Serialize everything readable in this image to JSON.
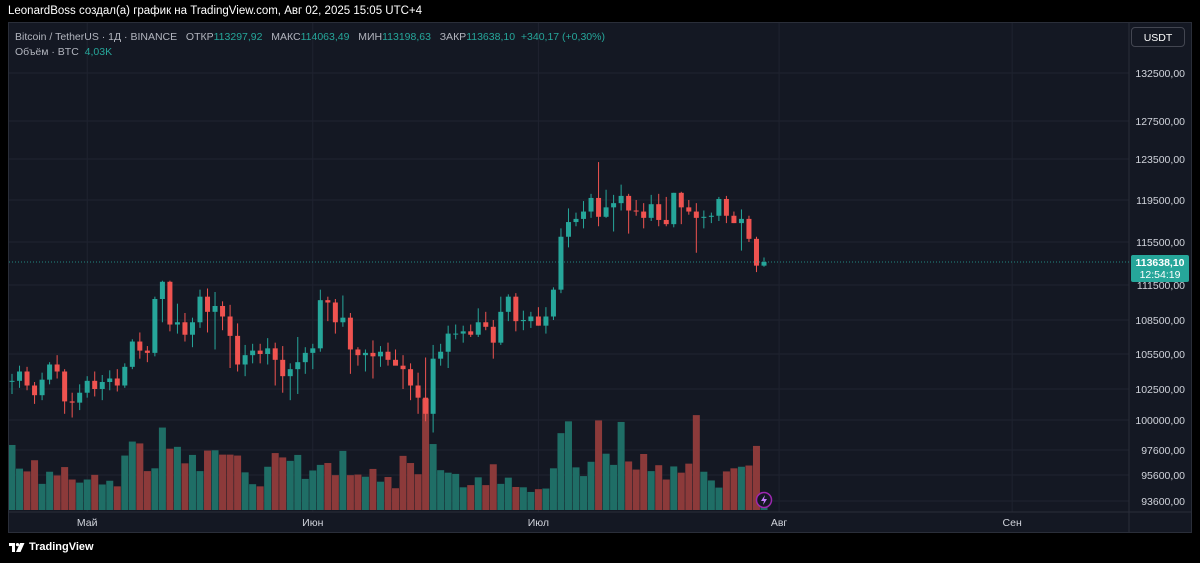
{
  "caption": "LeonardBoss создал(а) график на TradingView.com, Авг 02, 2025 15:05 UTC+4",
  "legend": {
    "symbol": "Bitcoin / TetherUS · 1Д · BINANCE",
    "open_label": "ОТКР",
    "open": "113297,92",
    "high_label": "МАКС",
    "high": "114063,49",
    "low_label": "МИН",
    "low": "113198,63",
    "close_label": "ЗАКР",
    "close": "113638,10",
    "change": "+340,17 (+0,30%)",
    "volume_label": "Объём · BTC",
    "volume": "4,03K"
  },
  "currency_button": "USDT",
  "footer_brand": "TradingView",
  "icons": {
    "logo": "tradingview-logo-icon",
    "lightning": "lightning-icon"
  },
  "colors": {
    "up": "#26a69a",
    "down": "#ef5350",
    "background": "#141823",
    "price_tag": "#26a69a"
  },
  "chart_data": {
    "type": "candlestick",
    "y_ticks": [
      "132500,00",
      "127500,00",
      "123500,00",
      "119500,00",
      "115500,00",
      "111500,00",
      "108500,00",
      "105500,00",
      "102500,00",
      "100000,00",
      "97600,00",
      "95600,00",
      "93600,00"
    ],
    "y_tick_values": [
      132500,
      127500,
      123500,
      119500,
      115500,
      111500,
      108500,
      105500,
      102500,
      100000,
      97600,
      95600,
      93600
    ],
    "x_ticks": [
      "Май",
      "Июн",
      "Июл",
      "Авг",
      "Сен"
    ],
    "x_tick_days": [
      10,
      40,
      70,
      102,
      133
    ],
    "last_price": {
      "price": "113638,10",
      "countdown": "12:54:19",
      "value": 113638.1
    },
    "candles": [
      [
        103120,
        103800,
        102100,
        103200,
        2.09
      ],
      [
        103200,
        104500,
        102600,
        104000,
        1.33
      ],
      [
        104000,
        104400,
        102400,
        102800,
        1.24
      ],
      [
        102800,
        103100,
        101300,
        102000,
        1.6
      ],
      [
        102000,
        103900,
        101600,
        103300,
        0.84
      ],
      [
        103300,
        104800,
        102900,
        104600,
        1.23
      ],
      [
        104600,
        105400,
        103400,
        104000,
        1.11
      ],
      [
        104000,
        104200,
        100500,
        101500,
        1.38
      ],
      [
        101500,
        102200,
        100200,
        101400,
        0.98
      ],
      [
        101400,
        102900,
        100800,
        102200,
        0.88
      ],
      [
        102200,
        103600,
        101800,
        103200,
        0.98
      ],
      [
        103200,
        104000,
        101900,
        102500,
        1.13
      ],
      [
        102500,
        103700,
        101600,
        103100,
        0.82
      ],
      [
        103100,
        104100,
        102400,
        103400,
        0.94
      ],
      [
        103400,
        104200,
        102300,
        102800,
        0.76
      ],
      [
        102800,
        104700,
        102600,
        104400,
        1.75
      ],
      [
        104400,
        106800,
        104200,
        106600,
        2.2
      ],
      [
        106600,
        107400,
        105100,
        105800,
        2.14
      ],
      [
        105800,
        106200,
        104800,
        105600,
        1.25
      ],
      [
        105600,
        110500,
        105300,
        110300,
        1.34
      ],
      [
        110300,
        111900,
        108300,
        111800,
        2.65
      ],
      [
        111800,
        111900,
        107500,
        108100,
        1.97
      ],
      [
        108100,
        109900,
        107300,
        108300,
        2.03
      ],
      [
        108300,
        109100,
        106600,
        107200,
        1.5
      ],
      [
        107200,
        108700,
        106100,
        108300,
        1.77
      ],
      [
        108300,
        111100,
        107800,
        110500,
        1.25
      ],
      [
        110500,
        111200,
        107400,
        109200,
        1.91
      ],
      [
        109200,
        110900,
        105900,
        109700,
        1.92
      ],
      [
        109700,
        110100,
        107600,
        108800,
        1.78
      ],
      [
        108800,
        109800,
        104300,
        107100,
        1.78
      ],
      [
        107100,
        108200,
        104000,
        104600,
        1.75
      ],
      [
        104600,
        106300,
        103600,
        105400,
        1.21
      ],
      [
        105400,
        106400,
        104700,
        105800,
        0.83
      ],
      [
        105800,
        106400,
        104700,
        105500,
        0.76
      ],
      [
        105500,
        106900,
        104600,
        106000,
        1.39
      ],
      [
        106000,
        106500,
        102800,
        105000,
        1.83
      ],
      [
        105000,
        106200,
        102200,
        103600,
        1.69
      ],
      [
        103600,
        104700,
        101600,
        104200,
        1.58
      ],
      [
        104200,
        107000,
        102100,
        104800,
        1.77
      ],
      [
        104800,
        106100,
        103800,
        105600,
        1.0
      ],
      [
        105600,
        106400,
        104200,
        106000,
        1.27
      ],
      [
        106000,
        111100,
        105700,
        110200,
        1.45
      ],
      [
        110200,
        110500,
        108400,
        110000,
        1.51
      ],
      [
        110000,
        110300,
        107300,
        108300,
        1.12
      ],
      [
        108300,
        110600,
        107900,
        108700,
        1.9
      ],
      [
        108700,
        109100,
        103800,
        105900,
        1.12
      ],
      [
        105900,
        106100,
        104500,
        105400,
        1.14
      ],
      [
        105400,
        105900,
        104000,
        105600,
        1.07
      ],
      [
        105600,
        106700,
        103400,
        105300,
        1.32
      ],
      [
        105300,
        106200,
        104400,
        105700,
        0.91
      ],
      [
        105700,
        106500,
        104500,
        105000,
        1.06
      ],
      [
        105000,
        105900,
        104700,
        104500,
        0.7
      ],
      [
        104500,
        105400,
        102500,
        104200,
        1.74
      ],
      [
        104200,
        104700,
        101600,
        102800,
        1.51
      ],
      [
        102800,
        103900,
        100500,
        101800,
        1.15
      ],
      [
        101800,
        105200,
        99900,
        100500,
        3.58
      ],
      [
        100500,
        106300,
        99000,
        105100,
        2.12
      ],
      [
        105100,
        106400,
        104500,
        105700,
        1.28
      ],
      [
        105700,
        108000,
        104300,
        107300,
        1.2
      ],
      [
        107300,
        108100,
        106800,
        107300,
        1.16
      ],
      [
        107300,
        108000,
        106500,
        107500,
        0.73
      ],
      [
        107500,
        108100,
        107000,
        107200,
        0.8
      ],
      [
        107200,
        109500,
        107000,
        108300,
        1.05
      ],
      [
        108300,
        109200,
        107600,
        107900,
        0.8
      ],
      [
        107900,
        108500,
        105100,
        106500,
        1.47
      ],
      [
        106500,
        110500,
        106300,
        109200,
        0.84
      ],
      [
        109200,
        110700,
        108400,
        110500,
        1.04
      ],
      [
        110500,
        110800,
        107500,
        108400,
        0.74
      ],
      [
        108400,
        109300,
        107600,
        108500,
        0.73
      ],
      [
        108400,
        109200,
        107800,
        108800,
        0.58
      ],
      [
        108800,
        109600,
        108000,
        108000,
        0.67
      ],
      [
        108000,
        109600,
        107300,
        108800,
        0.69
      ],
      [
        108800,
        111300,
        108500,
        111100,
        1.34
      ],
      [
        111100,
        116800,
        110800,
        116000,
        2.47
      ],
      [
        116000,
        118700,
        115000,
        117400,
        2.85
      ],
      [
        117400,
        118300,
        117000,
        117700,
        1.37
      ],
      [
        117700,
        119400,
        116800,
        118400,
        1.09
      ],
      [
        118400,
        120100,
        117800,
        119700,
        1.55
      ],
      [
        119700,
        123200,
        117000,
        117900,
        2.88
      ],
      [
        117900,
        120500,
        117800,
        118800,
        1.81
      ],
      [
        118800,
        120000,
        116500,
        119200,
        1.45
      ],
      [
        119200,
        121000,
        118500,
        119900,
        2.83
      ],
      [
        119900,
        120100,
        116300,
        118500,
        1.56
      ],
      [
        118500,
        119500,
        118000,
        118400,
        1.3
      ],
      [
        118400,
        119200,
        116800,
        117800,
        1.8
      ],
      [
        117800,
        120000,
        117500,
        119100,
        1.25
      ],
      [
        119100,
        120100,
        117000,
        117600,
        1.44
      ],
      [
        117600,
        119800,
        117000,
        117200,
        0.98
      ],
      [
        117200,
        120200,
        116900,
        120200,
        1.4
      ],
      [
        120200,
        120300,
        117200,
        118800,
        1.2
      ],
      [
        118800,
        119500,
        118100,
        118400,
        1.49
      ],
      [
        118400,
        119200,
        114500,
        117800,
        3.05
      ],
      [
        117800,
        118500,
        116800,
        117900,
        1.23
      ],
      [
        117900,
        118300,
        117300,
        118000,
        0.95
      ],
      [
        118000,
        119800,
        117500,
        119600,
        0.72
      ],
      [
        119600,
        119900,
        117300,
        118000,
        1.24
      ],
      [
        118000,
        118400,
        117300,
        117300,
        1.34
      ],
      [
        117300,
        118600,
        114700,
        117700,
        1.39
      ],
      [
        117700,
        118000,
        115500,
        115800,
        1.43
      ],
      [
        115800,
        116000,
        112700,
        113300,
        2.06
      ],
      [
        113300,
        114063,
        113199,
        113638,
        0.24
      ]
    ],
    "volume_unit": "K BTC",
    "volume_label": "Объём · BTC"
  }
}
